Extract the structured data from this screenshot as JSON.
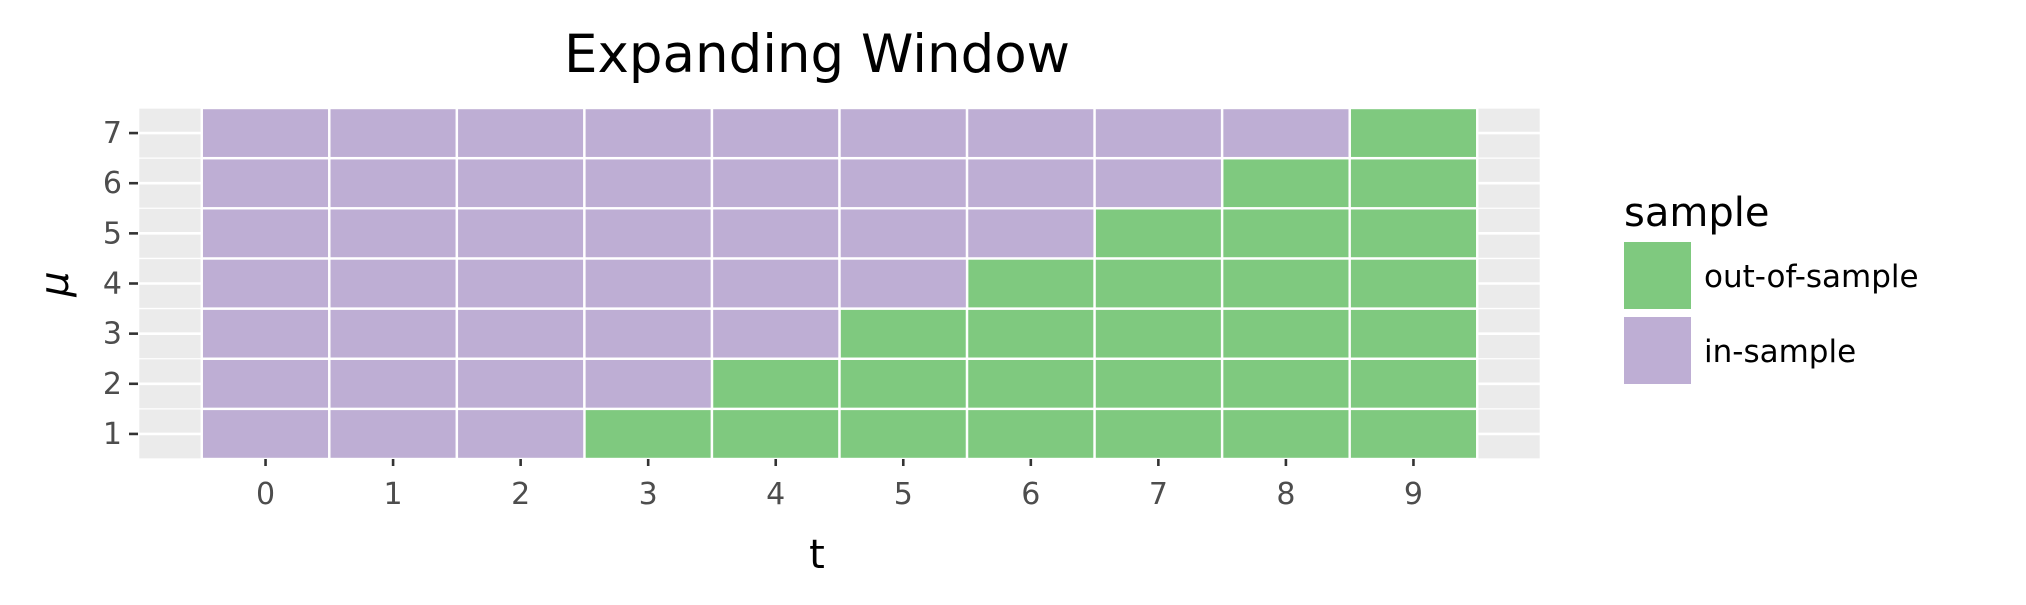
{
  "chart_data": {
    "type": "heatmap",
    "title": "Expanding Window",
    "xlabel": "t",
    "ylabel": "μ",
    "x": [
      0,
      1,
      2,
      3,
      4,
      5,
      6,
      7,
      8,
      9
    ],
    "y": [
      1,
      2,
      3,
      4,
      5,
      6,
      7
    ],
    "x_tick_labels": [
      "0",
      "1",
      "2",
      "3",
      "4",
      "5",
      "6",
      "7",
      "8",
      "9"
    ],
    "y_tick_labels": [
      "1",
      "2",
      "3",
      "4",
      "5",
      "6",
      "7"
    ],
    "xlim": [
      -1,
      10
    ],
    "ylim": [
      0.5,
      7.5
    ],
    "grid": true,
    "legend": {
      "title": "sample",
      "position": "right",
      "entries": [
        "out-of-sample",
        "in-sample"
      ]
    },
    "colors": {
      "out-of-sample": "#7fc97f",
      "in-sample": "#beaed4",
      "panel_background": "#ebebeb",
      "grid": "#ffffff"
    },
    "series": [
      {
        "name": "out-of-sample",
        "points": [
          [
            3,
            1
          ],
          [
            4,
            1
          ],
          [
            4,
            2
          ],
          [
            5,
            1
          ],
          [
            5,
            2
          ],
          [
            5,
            3
          ],
          [
            6,
            1
          ],
          [
            6,
            2
          ],
          [
            6,
            3
          ],
          [
            6,
            4
          ],
          [
            7,
            1
          ],
          [
            7,
            2
          ],
          [
            7,
            3
          ],
          [
            7,
            4
          ],
          [
            7,
            5
          ],
          [
            8,
            1
          ],
          [
            8,
            2
          ],
          [
            8,
            3
          ],
          [
            8,
            4
          ],
          [
            8,
            5
          ],
          [
            8,
            6
          ],
          [
            9,
            1
          ],
          [
            9,
            2
          ],
          [
            9,
            3
          ],
          [
            9,
            4
          ],
          [
            9,
            5
          ],
          [
            9,
            6
          ],
          [
            9,
            7
          ]
        ]
      },
      {
        "name": "in-sample",
        "points": [
          [
            0,
            1
          ],
          [
            0,
            2
          ],
          [
            0,
            3
          ],
          [
            0,
            4
          ],
          [
            0,
            5
          ],
          [
            0,
            6
          ],
          [
            0,
            7
          ],
          [
            1,
            1
          ],
          [
            1,
            2
          ],
          [
            1,
            3
          ],
          [
            1,
            4
          ],
          [
            1,
            5
          ],
          [
            1,
            6
          ],
          [
            1,
            7
          ],
          [
            2,
            1
          ],
          [
            2,
            2
          ],
          [
            2,
            3
          ],
          [
            2,
            4
          ],
          [
            2,
            5
          ],
          [
            2,
            6
          ],
          [
            2,
            7
          ],
          [
            3,
            2
          ],
          [
            3,
            3
          ],
          [
            3,
            4
          ],
          [
            3,
            5
          ],
          [
            3,
            6
          ],
          [
            3,
            7
          ],
          [
            4,
            3
          ],
          [
            4,
            4
          ],
          [
            4,
            5
          ],
          [
            4,
            6
          ],
          [
            4,
            7
          ],
          [
            5,
            4
          ],
          [
            5,
            5
          ],
          [
            5,
            6
          ],
          [
            5,
            7
          ],
          [
            6,
            5
          ],
          [
            6,
            6
          ],
          [
            6,
            7
          ],
          [
            7,
            6
          ],
          [
            7,
            7
          ],
          [
            8,
            7
          ]
        ]
      }
    ]
  }
}
